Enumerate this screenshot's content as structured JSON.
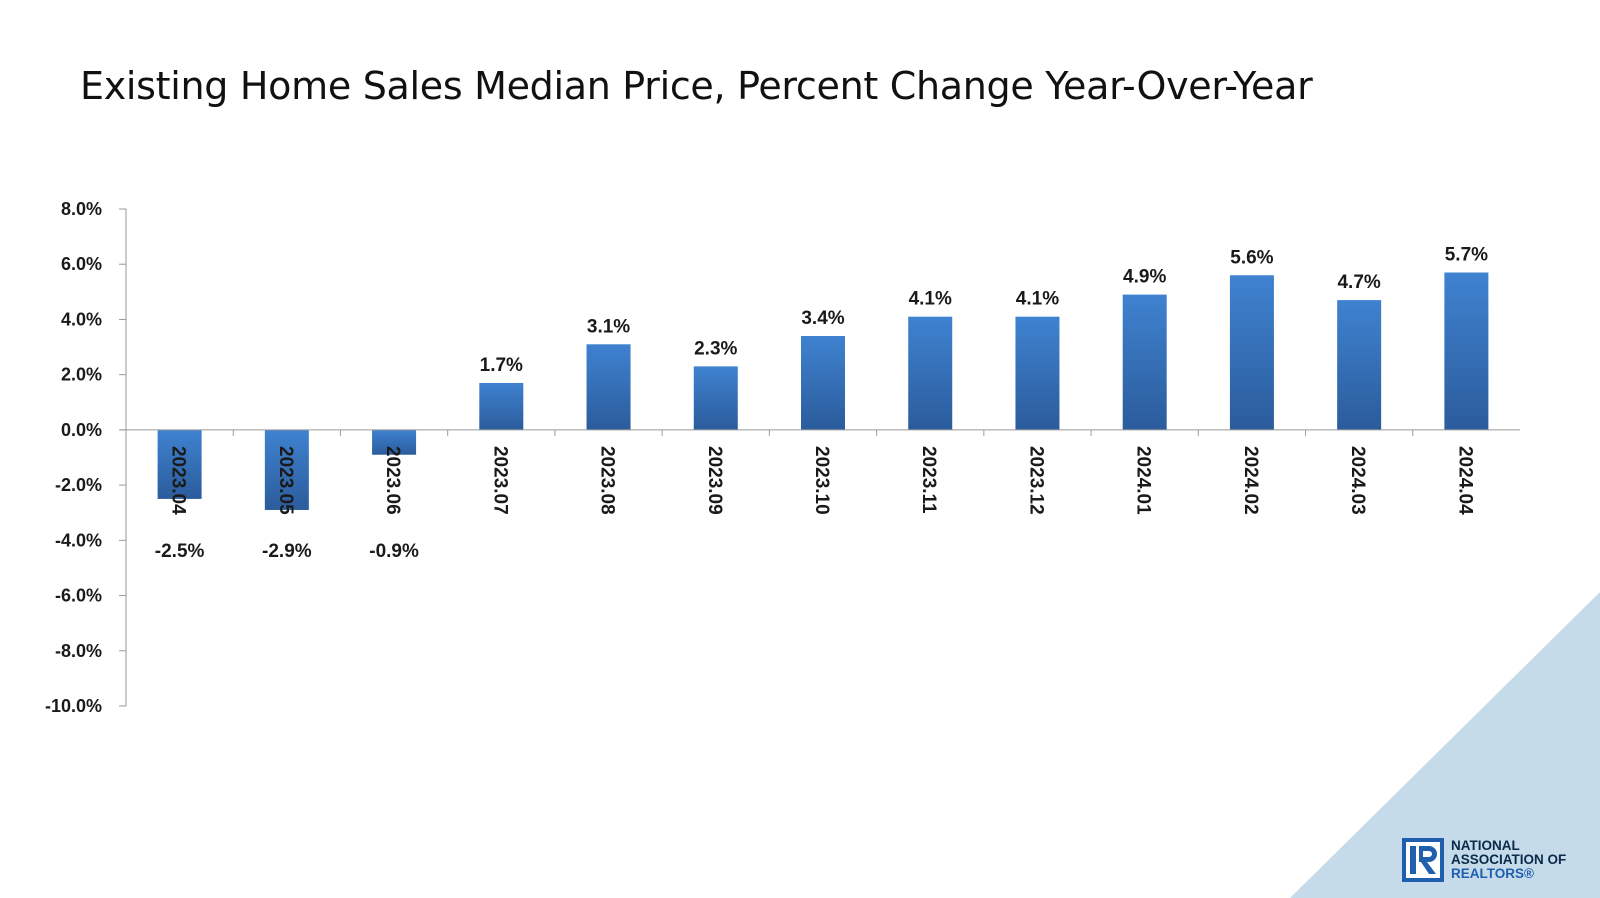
{
  "title": "Existing Home Sales Median Price, Percent Change Year-Over-Year",
  "chart_data": {
    "type": "bar",
    "categories": [
      "2023.04",
      "2023.05",
      "2023.06",
      "2023.07",
      "2023.08",
      "2023.09",
      "2023.10",
      "2023.11",
      "2023.12",
      "2024.01",
      "2024.02",
      "2024.03",
      "2024.04"
    ],
    "values": [
      -2.5,
      -2.9,
      -0.9,
      1.7,
      3.1,
      2.3,
      3.4,
      4.1,
      4.1,
      4.9,
      5.6,
      4.7,
      5.7
    ],
    "data_labels": [
      "-2.5%",
      "-2.9%",
      "-0.9%",
      "1.7%",
      "3.1%",
      "2.3%",
      "3.4%",
      "4.1%",
      "4.1%",
      "4.9%",
      "5.6%",
      "4.7%",
      "5.7%"
    ],
    "y_ticks": [
      8,
      6,
      4,
      2,
      0,
      -2,
      -4,
      -6,
      -8,
      -10
    ],
    "y_tick_labels": [
      "8.0%",
      "6.0%",
      "4.0%",
      "2.0%",
      "0.0%",
      "-2.0%",
      "-4.0%",
      "-6.0%",
      "-8.0%",
      "-10.0%"
    ],
    "ylim": [
      -10,
      8
    ],
    "xlabel": "",
    "ylabel": "",
    "grid": false,
    "legend": "none",
    "bar_color": "#3b7cc9"
  },
  "logo": {
    "line1": "NATIONAL",
    "line2": "ASSOCIATION OF",
    "line3": "REALTORS®"
  },
  "colors": {
    "accent": "#3b7cc9",
    "corner": "#c5dbea",
    "brand_dark": "#0b2a4a",
    "brand_blue": "#1f5fae"
  }
}
